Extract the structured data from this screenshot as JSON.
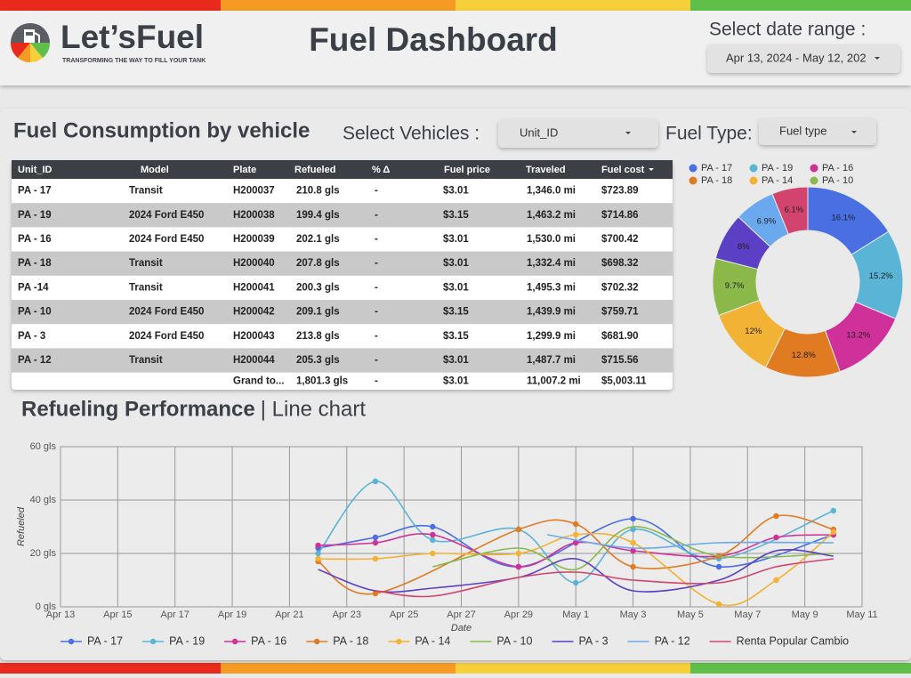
{
  "header": {
    "brand": "Let’sFuel",
    "tagline": "TRANSFORMING THE WAY TO FILL YOUR TANK",
    "title": "Fuel Dashboard",
    "date_label": "Select date range :",
    "date_value": "Apr 13, 2024 - May 12, 202"
  },
  "section_title": "Fuel Consumption by vehicle",
  "filters": {
    "vehicles_label": "Select Vehicles :",
    "vehicles_value": "Unit_ID",
    "fuel_label": "Fuel Type:",
    "fuel_value": "Fuel type"
  },
  "table": {
    "columns": [
      "Unit_ID",
      "Model",
      "Plate",
      "Refueled",
      "% Δ",
      "Fuel price",
      "Traveled",
      "Fuel cost"
    ],
    "rows": [
      [
        "PA - 17",
        "Transit",
        "H200037",
        "210.8 gls",
        "-",
        "$3.01",
        "1,346.0 mi",
        "$723.89"
      ],
      [
        "PA - 19",
        "2024 Ford E450",
        "H200038",
        "199.4 gls",
        "-",
        "$3.15",
        "1,463.2 mi",
        "$714.86"
      ],
      [
        "PA - 16",
        "2024 Ford E450",
        "H200039",
        "202.1 gls",
        "-",
        "$3.01",
        "1,530.0 mi",
        "$700.42"
      ],
      [
        "PA - 18",
        "Transit",
        "H200040",
        "207.8 gls",
        "-",
        "$3.01",
        "1,332.4 mi",
        "$698.32"
      ],
      [
        "PA -14",
        "Transit",
        "H200041",
        "200.3 gls",
        "-",
        "$3.01",
        "1,495.3 mi",
        "$702.32"
      ],
      [
        "PA - 10",
        "2024 Ford E450",
        "H200042",
        "209.1 gls",
        "-",
        "$3.15",
        "1,439.9 mi",
        "$759.71"
      ],
      [
        "PA - 3",
        "2024 Ford E450",
        "H200043",
        "213.8 gls",
        "-",
        "$3.15",
        "1,299.9 mi",
        "$681.90"
      ],
      [
        "PA - 12",
        "Transit",
        "H200044",
        "205.3 gls",
        "-",
        "$3.01",
        "1,487.7 mi",
        "$715.56"
      ]
    ],
    "total": [
      "Grand to...",
      "1,801.3 gls",
      "-",
      "$3.01",
      "11,007.2 mi",
      "$5,003.11"
    ]
  },
  "chart_data": [
    {
      "type": "donut",
      "categories": [
        "PA - 17",
        "PA - 19",
        "PA - 16",
        "PA - 18",
        "PA - 14",
        "PA - 10",
        null,
        null,
        null
      ],
      "values": [
        16.1,
        15.2,
        13.2,
        12.8,
        12,
        9.7,
        8,
        6.9,
        6.1
      ],
      "value_labels": [
        "16.1%",
        "15.2%",
        "13.2%",
        "12.8%",
        "12%",
        "9.7%",
        "8%",
        "6.9%",
        "6.1%"
      ],
      "colors": [
        "#4a6fe3",
        "#5ab4d6",
        "#d0309a",
        "#e07b21",
        "#f2b233",
        "#8ab94a",
        "#5b3fc4",
        "#6aa9ee",
        "#d2446e"
      ],
      "legend": "top"
    },
    {
      "type": "line",
      "title": "Refueling Performance",
      "subtitle": "| Line chart",
      "xlabel": "Date",
      "ylabel": "Refueled",
      "xlim": [
        "Apr 13",
        "May 11"
      ],
      "xticks": [
        "Apr 13",
        "Apr 15",
        "Apr 17",
        "Apr 19",
        "Apr 21",
        "Apr 23",
        "Apr 25",
        "Apr 27",
        "Apr 29",
        "May 1",
        "May 3",
        "May 5",
        "May 7",
        "May 9",
        "May 11"
      ],
      "ylim": [
        0,
        60
      ],
      "yticks": [
        {
          "value": 0,
          "label": "0 gls"
        },
        {
          "value": 20,
          "label": "20 gls"
        },
        {
          "value": 40,
          "label": "40 gls"
        },
        {
          "value": 60,
          "label": "60 gls"
        }
      ],
      "grid": true,
      "smooth": true,
      "legend": "bottom",
      "series": [
        {
          "name": "PA - 17",
          "color": "#4a6fe3",
          "markers": true,
          "x": [
            "Apr 22",
            "Apr 24",
            "Apr 26",
            "Apr 29",
            "May 3",
            "May 6",
            "May 10"
          ],
          "values": [
            22,
            26,
            30,
            15,
            33,
            15,
            27
          ]
        },
        {
          "name": "PA - 19",
          "color": "#5ab4d6",
          "markers": true,
          "x": [
            "Apr 22",
            "Apr 24",
            "Apr 26",
            "Apr 29",
            "May 1",
            "May 3",
            "May 6",
            "May 10"
          ],
          "values": [
            20,
            47,
            25,
            29,
            9,
            29,
            18,
            36
          ]
        },
        {
          "name": "PA - 16",
          "color": "#d0309a",
          "markers": true,
          "x": [
            "Apr 22",
            "Apr 24",
            "Apr 26",
            "Apr 29",
            "May 1",
            "May 3",
            "May 6",
            "May 8",
            "May 10"
          ],
          "values": [
            23,
            24,
            27,
            15,
            24,
            21,
            19,
            26,
            27
          ]
        },
        {
          "name": "PA - 18",
          "color": "#e07b21",
          "markers": true,
          "x": [
            "Apr 22",
            "Apr 24",
            "Apr 29",
            "May 1",
            "May 3",
            "May 6",
            "May 8",
            "May 10"
          ],
          "values": [
            17,
            5,
            29,
            31,
            15,
            19,
            34,
            29
          ]
        },
        {
          "name": "PA - 14",
          "color": "#f2b233",
          "markers": true,
          "x": [
            "Apr 22",
            "Apr 24",
            "Apr 26",
            "Apr 29",
            "May 1",
            "May 3",
            "May 6",
            "May 8",
            "May 10"
          ],
          "values": [
            18,
            18,
            20,
            20,
            27,
            24,
            1,
            10,
            28
          ]
        },
        {
          "name": "PA - 10",
          "color": "#8ab94a",
          "markers": false,
          "x": [
            "Apr 26",
            "Apr 29",
            "May 1",
            "May 3",
            "May 6",
            "May 10"
          ],
          "values": [
            15,
            22,
            14,
            30,
            19,
            20
          ]
        },
        {
          "name": "PA - 3",
          "color": "#5b3fc4",
          "markers": false,
          "x": [
            "Apr 22",
            "Apr 24",
            "Apr 26",
            "Apr 29",
            "May 1",
            "May 3",
            "May 6",
            "May 8",
            "May 10"
          ],
          "values": [
            14,
            6,
            7,
            11,
            18,
            6,
            10,
            21,
            19
          ]
        },
        {
          "name": "PA - 12",
          "color": "#6aa9ee",
          "markers": false,
          "x": [
            "Apr 30",
            "May 3",
            "May 6",
            "May 10"
          ],
          "values": [
            27,
            22,
            24,
            24
          ]
        },
        {
          "name": "Renta Popular Cambio",
          "color": "#d2446e",
          "markers": false,
          "x": [
            "Apr 24",
            "Apr 26",
            "Apr 29",
            "May 1",
            "May 3",
            "May 6",
            "May 8",
            "May 10"
          ],
          "values": [
            6,
            4,
            11,
            13,
            10,
            9,
            15,
            18
          ]
        }
      ]
    }
  ]
}
